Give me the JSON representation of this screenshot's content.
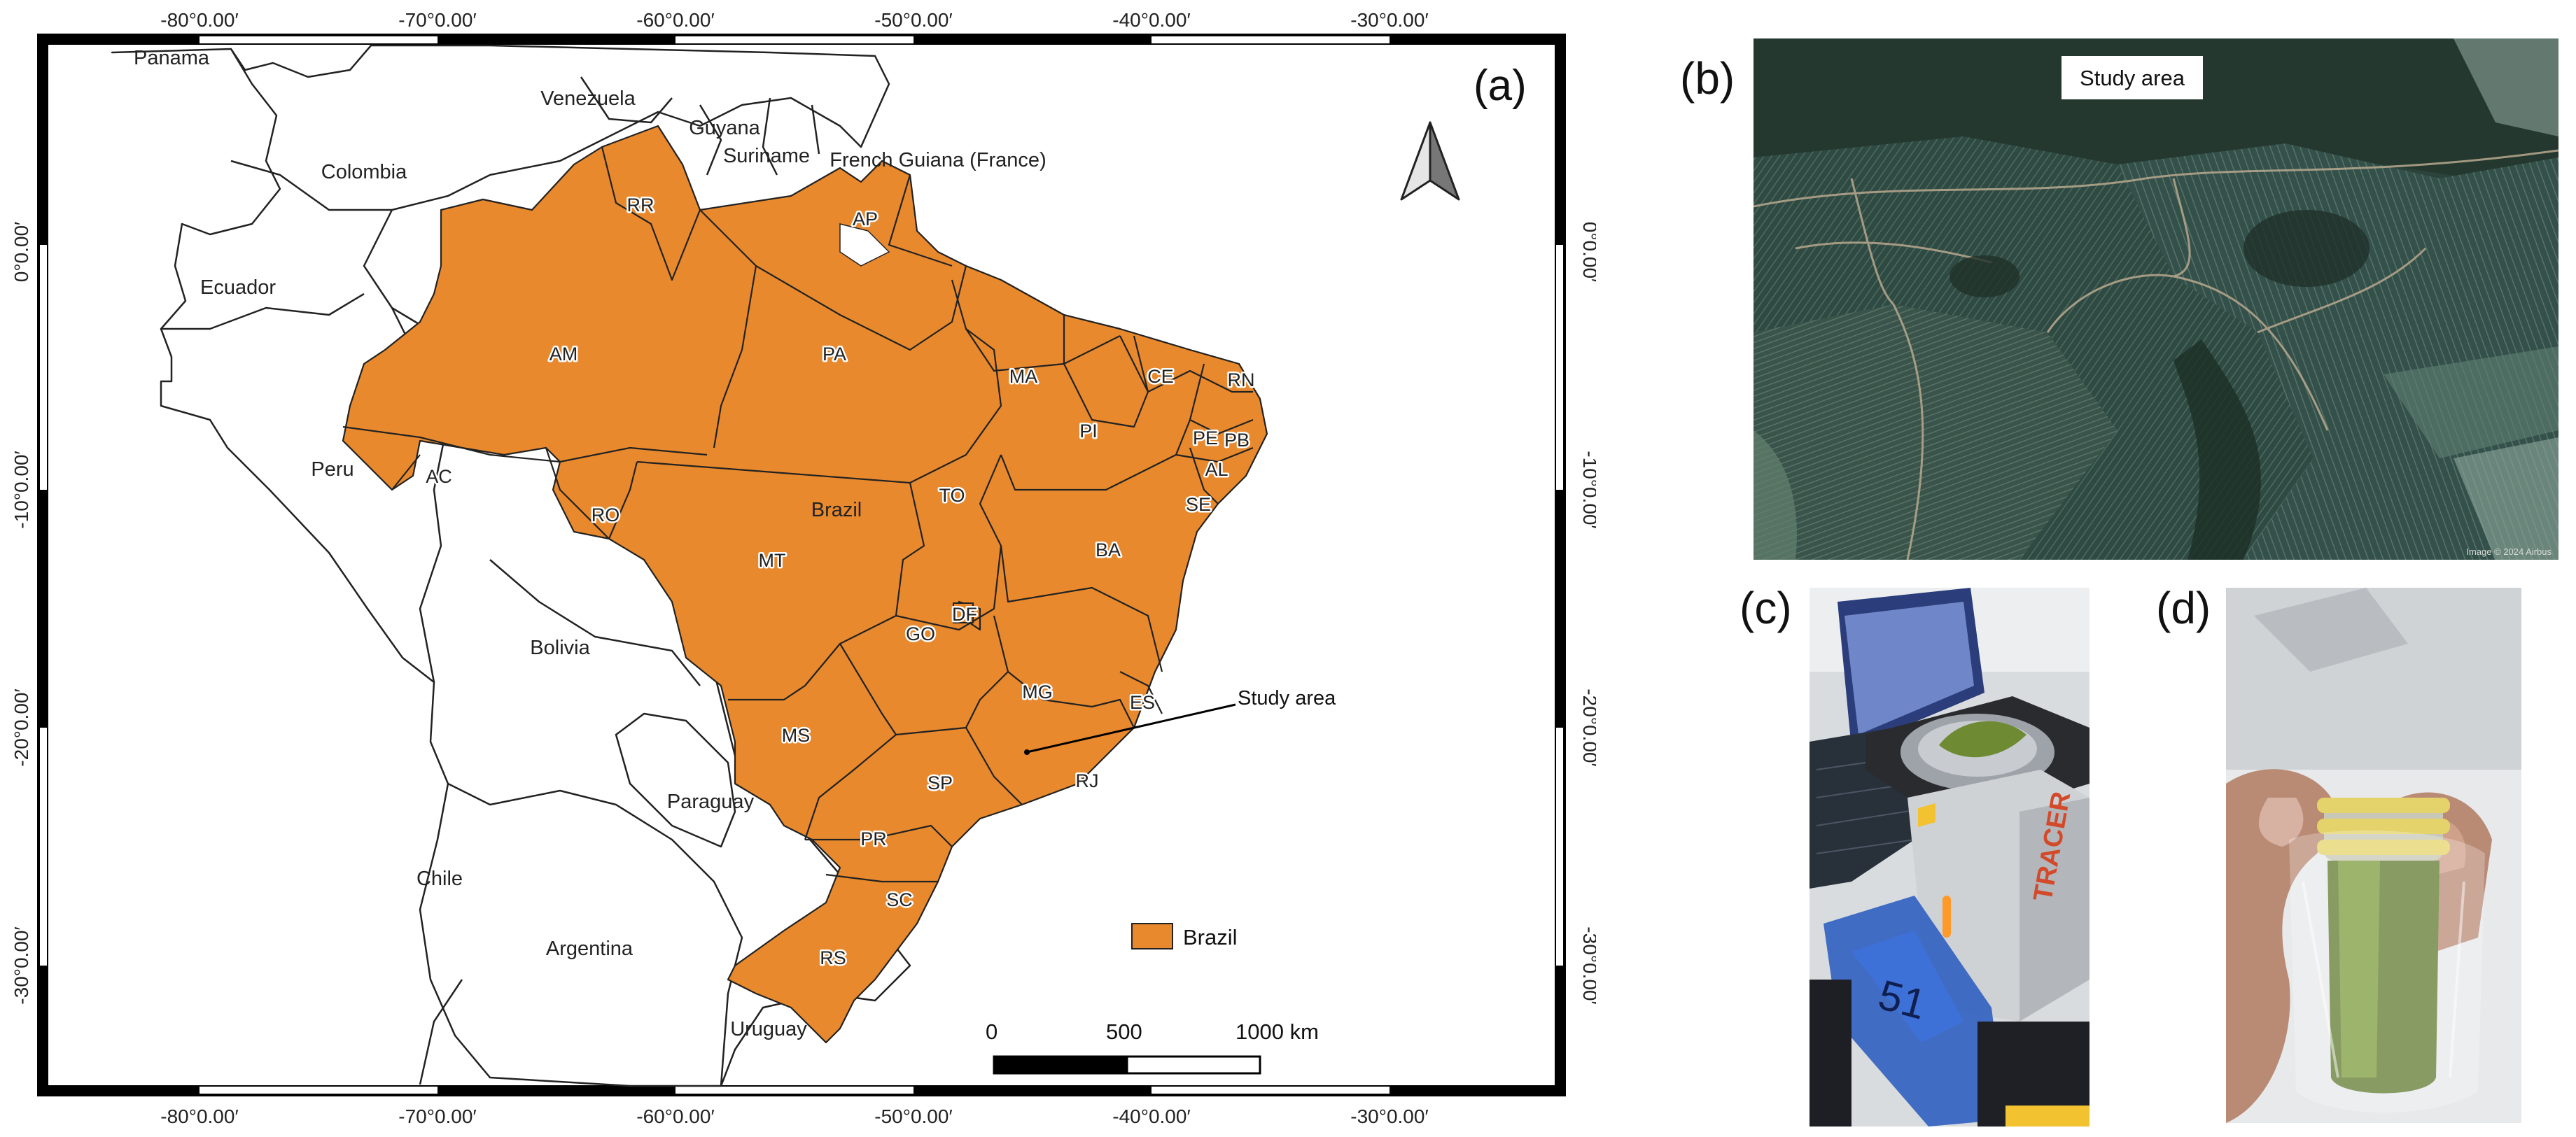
{
  "panels": {
    "a": "(a)",
    "b": "(b)",
    "c": "(c)",
    "d": "(d)"
  },
  "map": {
    "lon_ticks": [
      "-80°0.00′",
      "-70°0.00′",
      "-60°0.00′",
      "-50°0.00′",
      "-40°0.00′",
      "-30°0.00′"
    ],
    "lat_ticks": [
      "0°0.00′",
      "-10°0.00′",
      "-20°0.00′",
      "-30°0.00′"
    ],
    "countries": {
      "panama": "Panama",
      "venezuela": "Venezuela",
      "colombia": "Colombia",
      "guyana": "Guyana",
      "suriname": "Suriname",
      "french_guiana": "French Guiana (France)",
      "ecuador": "Ecuador",
      "peru": "Peru",
      "bolivia": "Bolivia",
      "paraguay": "Paraguay",
      "chile": "Chile",
      "argentina": "Argentina",
      "uruguay": "Uruguay",
      "brazil": "Brazil"
    },
    "states": [
      "RR",
      "AP",
      "AM",
      "PA",
      "MA",
      "CE",
      "RN",
      "PI",
      "PE",
      "PB",
      "AL",
      "SE",
      "AC",
      "RO",
      "TO",
      "MT",
      "BA",
      "DF",
      "GO",
      "MG",
      "ES",
      "MS",
      "SP",
      "RJ",
      "PR",
      "SC",
      "RS"
    ],
    "study_area_label": "Study area",
    "legend_label": "Brazil",
    "scale": {
      "s0": "0",
      "s500": "500",
      "s1000": "1000 km"
    },
    "colors": {
      "brazil_fill": "#e8892e",
      "outline": "#222222",
      "background": "#ffffff"
    }
  },
  "photo_b": {
    "label": "Study area",
    "credit": "Image © 2024 Airbus"
  }
}
